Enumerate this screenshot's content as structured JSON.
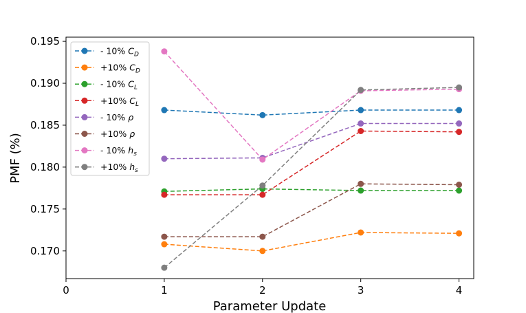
{
  "chart_data": {
    "type": "line",
    "xlabel": "Parameter Update",
    "ylabel": "PMF (%)",
    "xlim": [
      0,
      4.15
    ],
    "ylim": [
      0.1667,
      0.1955
    ],
    "xticks": [
      0,
      1,
      2,
      3,
      4
    ],
    "yticks": [
      0.17,
      0.175,
      0.18,
      0.185,
      0.19,
      0.195
    ],
    "ytick_labels": [
      "0.170",
      "0.175",
      "0.180",
      "0.185",
      "0.190",
      "0.195"
    ],
    "grid": false,
    "legend_position": "upper-left",
    "x": [
      1,
      2,
      3,
      4
    ],
    "series": [
      {
        "name": "- 10% C_D",
        "label_main": "- 10% ",
        "label_sym": "C",
        "label_sub": "D",
        "color": "#1f77b4",
        "values": [
          0.1868,
          0.1862,
          0.1868,
          0.1868
        ]
      },
      {
        "name": "+10% C_D",
        "label_main": "+10% ",
        "label_sym": "C",
        "label_sub": "D",
        "color": "#ff7f0e",
        "values": [
          0.1708,
          0.17,
          0.1722,
          0.1721
        ]
      },
      {
        "name": "- 10% C_L",
        "label_main": "- 10% ",
        "label_sym": "C",
        "label_sub": "L",
        "color": "#2ca02c",
        "values": [
          0.1771,
          0.1774,
          0.1772,
          0.1772
        ]
      },
      {
        "name": "+10% C_L",
        "label_main": "+10% ",
        "label_sym": "C",
        "label_sub": "L",
        "color": "#d62728",
        "values": [
          0.1767,
          0.1767,
          0.1843,
          0.1842
        ]
      },
      {
        "name": "- 10% ρ",
        "label_main": "- 10% ",
        "label_sym": "ρ",
        "label_sub": "",
        "color": "#9467bd",
        "values": [
          0.181,
          0.1811,
          0.1852,
          0.1852
        ]
      },
      {
        "name": "+10% ρ",
        "label_main": "+10% ",
        "label_sym": "ρ",
        "label_sub": "",
        "color": "#8c564b",
        "values": [
          0.1717,
          0.1717,
          0.178,
          0.1779
        ]
      },
      {
        "name": "- 10% h_s",
        "label_main": "- 10% ",
        "label_sym": "h",
        "label_sub": "s",
        "color": "#e377c2",
        "values": [
          0.1938,
          0.1809,
          0.1891,
          0.1893
        ]
      },
      {
        "name": "+10% h_s",
        "label_main": "+10% ",
        "label_sym": "h",
        "label_sub": "s",
        "color": "#7f7f7f",
        "values": [
          0.168,
          0.1778,
          0.1892,
          0.1895
        ]
      }
    ]
  }
}
